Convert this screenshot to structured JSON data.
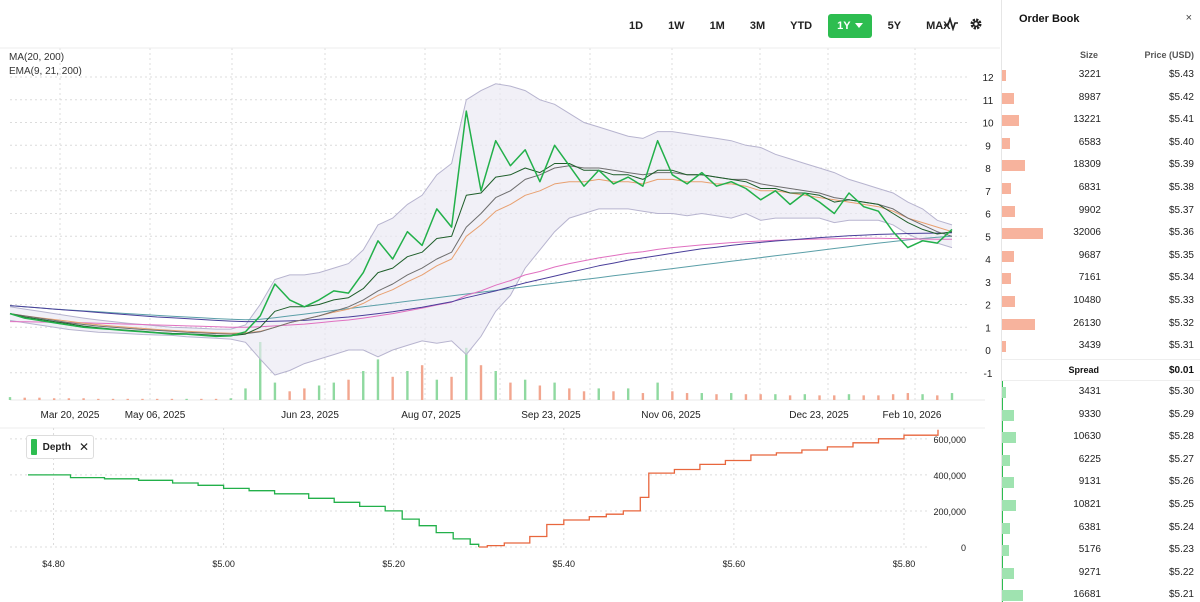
{
  "toolbar": {
    "timeframes": [
      "1D",
      "1W",
      "1M",
      "3M",
      "YTD",
      "1Y",
      "5Y",
      "MAX"
    ],
    "active_timeframe": "1Y",
    "icons": [
      "pulse-icon",
      "gear-icon"
    ]
  },
  "indicators": {
    "ma": "MA(20, 200)",
    "ema": "EMA(9, 21, 200)"
  },
  "depth_badge": {
    "label": "Depth",
    "close": "✕"
  },
  "colors": {
    "accent_green": "#2dbd50",
    "ask": "#f7b39d",
    "bid": "#9fe3b0",
    "depth_ask_line": "#e8663d",
    "price_line": "#22b04a"
  },
  "order_book": {
    "title": "Order Book",
    "close": "×",
    "size_header": "Size",
    "price_header": "Price (USD)",
    "spread_label": "Spread",
    "spread_value": "$0.01",
    "asks": [
      {
        "size": "3221",
        "price": "$5.43"
      },
      {
        "size": "8987",
        "price": "$5.42"
      },
      {
        "size": "13221",
        "price": "$5.41"
      },
      {
        "size": "6583",
        "price": "$5.40"
      },
      {
        "size": "18309",
        "price": "$5.39"
      },
      {
        "size": "6831",
        "price": "$5.38"
      },
      {
        "size": "9902",
        "price": "$5.37"
      },
      {
        "size": "32006",
        "price": "$5.36"
      },
      {
        "size": "9687",
        "price": "$5.35"
      },
      {
        "size": "7161",
        "price": "$5.34"
      },
      {
        "size": "10480",
        "price": "$5.33"
      },
      {
        "size": "26130",
        "price": "$5.32"
      },
      {
        "size": "3439",
        "price": "$5.31"
      }
    ],
    "bids": [
      {
        "size": "3431",
        "price": "$5.30"
      },
      {
        "size": "9330",
        "price": "$5.29"
      },
      {
        "size": "10630",
        "price": "$5.28"
      },
      {
        "size": "6225",
        "price": "$5.27"
      },
      {
        "size": "9131",
        "price": "$5.26"
      },
      {
        "size": "10821",
        "price": "$5.25"
      },
      {
        "size": "6381",
        "price": "$5.24"
      },
      {
        "size": "5176",
        "price": "$5.23"
      },
      {
        "size": "9271",
        "price": "$5.22"
      },
      {
        "size": "16681",
        "price": "$5.21"
      }
    ]
  },
  "chart_data": [
    {
      "type": "line",
      "x_tick_labels": [
        "Mar 20, 2025",
        "May 06, 2025",
        "Jun 23, 2025",
        "Aug 07, 2025",
        "Sep 23, 2025",
        "Nov 06, 2025",
        "Dec 23, 2025",
        "Feb 10, 2026"
      ],
      "y_tick_labels": [
        "-1",
        "0",
        "1",
        "2",
        "3",
        "4",
        "5",
        "6",
        "7",
        "8",
        "9",
        "10",
        "11",
        "12"
      ],
      "ylim": [
        -1,
        12.5
      ],
      "grid": true,
      "series": [
        {
          "key": "price",
          "color": "#22b04a",
          "values": [
            1.6,
            1.4,
            1.3,
            1.2,
            1.1,
            1.0,
            0.95,
            0.9,
            0.85,
            0.8,
            0.75,
            0.7,
            0.7,
            0.65,
            0.6,
            0.62,
            0.8,
            1.5,
            2.9,
            2.2,
            1.9,
            2.2,
            2.6,
            2.5,
            3.4,
            4.8,
            4.0,
            5.2,
            4.6,
            6.2,
            5.4,
            10.5,
            7.0,
            9.2,
            8.1,
            8.8,
            7.4,
            9.0,
            8.1,
            7.2,
            7.9,
            7.3,
            7.6,
            7.2,
            9.2,
            7.7,
            7.3,
            7.8,
            7.2,
            7.4,
            7.1,
            6.6,
            7.0,
            6.4,
            6.9,
            6.5,
            6.0,
            6.9,
            6.3,
            6.1,
            5.2,
            4.5,
            4.8,
            4.7,
            5.3
          ]
        },
        {
          "key": "ema9",
          "color": "#1e5e2a",
          "values": [
            1.6,
            1.45,
            1.35,
            1.25,
            1.15,
            1.05,
            0.98,
            0.92,
            0.87,
            0.82,
            0.77,
            0.73,
            0.71,
            0.68,
            0.64,
            0.63,
            0.7,
            1.0,
            1.7,
            1.9,
            1.9,
            2.0,
            2.2,
            2.3,
            2.7,
            3.4,
            3.6,
            4.1,
            4.3,
            4.9,
            5.0,
            6.8,
            6.9,
            7.6,
            7.7,
            8.0,
            7.8,
            8.2,
            8.2,
            7.9,
            7.9,
            7.7,
            7.7,
            7.5,
            7.9,
            7.9,
            7.7,
            7.7,
            7.6,
            7.5,
            7.4,
            7.1,
            7.1,
            6.9,
            6.9,
            6.8,
            6.5,
            6.6,
            6.5,
            6.4,
            6.0,
            5.6,
            5.3,
            5.1,
            5.2
          ]
        },
        {
          "key": "ma20",
          "color": "#6e6e6e",
          "values": [
            1.6,
            1.5,
            1.4,
            1.3,
            1.2,
            1.12,
            1.05,
            1.0,
            0.95,
            0.9,
            0.86,
            0.82,
            0.78,
            0.75,
            0.72,
            0.7,
            0.72,
            0.8,
            1.0,
            1.2,
            1.35,
            1.5,
            1.7,
            1.9,
            2.2,
            2.6,
            2.9,
            3.3,
            3.6,
            4.0,
            4.3,
            5.4,
            6.0,
            6.7,
            7.0,
            7.5,
            7.7,
            8.0,
            8.1,
            8.0,
            8.0,
            7.9,
            7.8,
            7.7,
            7.8,
            7.8,
            7.7,
            7.7,
            7.6,
            7.5,
            7.5,
            7.3,
            7.2,
            7.1,
            7.0,
            6.9,
            6.7,
            6.6,
            6.5,
            6.4,
            6.2,
            5.8,
            5.5,
            5.2,
            5.0
          ]
        },
        {
          "key": "ema21",
          "color": "#e8a070",
          "values": [
            1.6,
            1.5,
            1.42,
            1.34,
            1.26,
            1.18,
            1.11,
            1.05,
            1.0,
            0.95,
            0.9,
            0.86,
            0.82,
            0.79,
            0.76,
            0.74,
            0.75,
            0.82,
            1.0,
            1.2,
            1.35,
            1.5,
            1.66,
            1.8,
            2.05,
            2.4,
            2.65,
            3.0,
            3.3,
            3.7,
            4.0,
            5.0,
            5.5,
            6.1,
            6.4,
            6.8,
            7.0,
            7.3,
            7.4,
            7.4,
            7.5,
            7.4,
            7.4,
            7.3,
            7.5,
            7.5,
            7.4,
            7.4,
            7.3,
            7.3,
            7.2,
            7.0,
            7.0,
            6.9,
            6.8,
            6.7,
            6.6,
            6.5,
            6.4,
            6.3,
            6.1,
            5.8,
            5.6,
            5.4,
            5.2
          ]
        },
        {
          "key": "ema200",
          "color": "#e070c0",
          "values": [
            1.25,
            1.24,
            1.23,
            1.22,
            1.21,
            1.2,
            1.18,
            1.16,
            1.14,
            1.12,
            1.1,
            1.08,
            1.06,
            1.04,
            1.02,
            1.0,
            1.0,
            1.02,
            1.06,
            1.1,
            1.14,
            1.2,
            1.26,
            1.32,
            1.4,
            1.5,
            1.6,
            1.72,
            1.84,
            1.98,
            2.1,
            2.4,
            2.6,
            2.85,
            3.05,
            3.3,
            3.45,
            3.65,
            3.8,
            3.92,
            4.05,
            4.15,
            4.25,
            4.32,
            4.42,
            4.5,
            4.56,
            4.62,
            4.67,
            4.72,
            4.76,
            4.79,
            4.82,
            4.84,
            4.86,
            4.88,
            4.89,
            4.9,
            4.91,
            4.91,
            4.9,
            4.89,
            4.88,
            4.87,
            4.87
          ]
        },
        {
          "key": "ma200",
          "color": "#4a3f9a",
          "values": [
            1.95,
            1.9,
            1.85,
            1.8,
            1.75,
            1.7,
            1.65,
            1.6,
            1.55,
            1.5,
            1.45,
            1.42,
            1.38,
            1.34,
            1.3,
            1.27,
            1.25,
            1.25,
            1.26,
            1.28,
            1.3,
            1.35,
            1.4,
            1.45,
            1.52,
            1.6,
            1.68,
            1.78,
            1.88,
            2.0,
            2.12,
            2.3,
            2.45,
            2.6,
            2.78,
            2.95,
            3.1,
            3.25,
            3.4,
            3.55,
            3.7,
            3.82,
            3.95,
            4.05,
            4.15,
            4.25,
            4.35,
            4.45,
            4.52,
            4.6,
            4.67,
            4.73,
            4.79,
            4.84,
            4.89,
            4.94,
            4.98,
            5.02,
            5.05,
            5.08,
            5.1,
            5.12,
            5.13,
            5.14,
            5.15
          ]
        },
        {
          "key": "trend",
          "color": "#5b9fa8",
          "values": [
            1.95,
            1.9,
            1.85,
            1.8,
            1.76,
            1.72,
            1.68,
            1.64,
            1.6,
            1.56,
            1.52,
            1.48,
            1.45,
            1.42,
            1.38,
            1.35,
            1.33,
            1.35,
            1.42,
            1.5,
            1.58,
            1.66,
            1.74,
            1.82,
            1.9,
            1.98,
            2.06,
            2.14,
            2.22,
            2.3,
            2.38,
            2.46,
            2.54,
            2.62,
            2.7,
            2.78,
            2.86,
            2.94,
            3.02,
            3.1,
            3.18,
            3.26,
            3.34,
            3.42,
            3.5,
            3.58,
            3.66,
            3.74,
            3.82,
            3.9,
            3.98,
            4.06,
            4.14,
            4.22,
            4.3,
            4.38,
            4.46,
            4.54,
            4.62,
            4.7,
            4.77,
            4.84,
            4.9,
            4.96,
            5.0
          ]
        }
      ],
      "bollinger": {
        "upper": [
          1.9,
          1.8,
          1.7,
          1.6,
          1.5,
          1.4,
          1.32,
          1.25,
          1.18,
          1.12,
          1.06,
          1.0,
          0.98,
          0.95,
          0.92,
          0.92,
          1.1,
          2.0,
          3.1,
          3.3,
          3.3,
          3.4,
          3.6,
          3.8,
          4.4,
          5.5,
          5.8,
          6.4,
          6.8,
          7.7,
          8.2,
          11.0,
          11.4,
          11.7,
          11.6,
          11.4,
          11.0,
          10.8,
          10.4,
          10.0,
          9.8,
          9.6,
          9.4,
          9.3,
          9.6,
          9.6,
          9.5,
          9.4,
          9.3,
          9.2,
          9.0,
          8.9,
          8.6,
          8.4,
          8.2,
          8.0,
          7.8,
          7.5,
          7.3,
          7.1,
          6.9,
          6.5,
          6.2,
          5.7,
          5.5
        ],
        "lower": [
          1.3,
          1.2,
          1.1,
          1.0,
          0.9,
          0.84,
          0.78,
          0.75,
          0.72,
          0.68,
          0.66,
          0.64,
          0.58,
          0.55,
          0.52,
          0.48,
          0.34,
          -0.4,
          -1.1,
          -0.9,
          -0.6,
          -0.4,
          -0.2,
          0.0,
          0.0,
          -0.3,
          0.0,
          0.2,
          0.4,
          0.3,
          0.4,
          -0.2,
          0.6,
          1.7,
          2.4,
          3.6,
          4.4,
          5.2,
          5.8,
          6.0,
          6.2,
          6.2,
          6.2,
          6.1,
          6.0,
          6.0,
          5.9,
          6.0,
          5.9,
          5.8,
          6.0,
          5.7,
          5.8,
          5.8,
          5.8,
          5.8,
          5.6,
          5.7,
          5.7,
          5.7,
          5.5,
          5.1,
          4.8,
          4.7,
          4.5
        ]
      },
      "volume": [
        0.05,
        0.04,
        0.04,
        0.03,
        0.03,
        0.03,
        0.02,
        0.02,
        0.02,
        0.02,
        0.02,
        0.02,
        0.02,
        0.02,
        0.02,
        0.03,
        0.2,
        1.0,
        0.3,
        0.15,
        0.2,
        0.25,
        0.3,
        0.35,
        0.5,
        0.7,
        0.4,
        0.5,
        0.6,
        0.35,
        0.4,
        0.9,
        0.6,
        0.5,
        0.3,
        0.35,
        0.25,
        0.3,
        0.2,
        0.15,
        0.2,
        0.15,
        0.2,
        0.12,
        0.3,
        0.15,
        0.12,
        0.12,
        0.1,
        0.12,
        0.1,
        0.1,
        0.1,
        0.08,
        0.1,
        0.08,
        0.08,
        0.1,
        0.08,
        0.08,
        0.1,
        0.12,
        0.1,
        0.08,
        0.12
      ]
    },
    {
      "type": "area",
      "x_tick_labels": [
        "$4.80",
        "$5.00",
        "$5.20",
        "$5.40",
        "$5.60",
        "$5.80"
      ],
      "y_tick_labels": [
        "0",
        "200,000",
        "400,000",
        "600,000"
      ],
      "xlim": [
        4.77,
        5.84
      ],
      "ylim": [
        0,
        660000
      ],
      "bids": [
        [
          4.77,
          400000
        ],
        [
          4.8,
          400000
        ],
        [
          4.82,
          385000
        ],
        [
          4.86,
          378000
        ],
        [
          4.9,
          370000
        ],
        [
          4.94,
          355000
        ],
        [
          4.97,
          342000
        ],
        [
          5.0,
          325000
        ],
        [
          5.03,
          312000
        ],
        [
          5.06,
          295000
        ],
        [
          5.1,
          270000
        ],
        [
          5.13,
          248000
        ],
        [
          5.16,
          225000
        ],
        [
          5.19,
          200000
        ],
        [
          5.21,
          155000
        ],
        [
          5.23,
          118000
        ],
        [
          5.25,
          80000
        ],
        [
          5.27,
          45000
        ],
        [
          5.29,
          15000
        ],
        [
          5.3,
          0
        ]
      ],
      "asks": [
        [
          5.3,
          0
        ],
        [
          5.31,
          8000
        ],
        [
          5.33,
          22000
        ],
        [
          5.36,
          58000
        ],
        [
          5.38,
          125000
        ],
        [
          5.4,
          150000
        ],
        [
          5.43,
          168000
        ],
        [
          5.45,
          182000
        ],
        [
          5.47,
          200000
        ],
        [
          5.49,
          275000
        ],
        [
          5.5,
          410000
        ],
        [
          5.53,
          430000
        ],
        [
          5.56,
          458000
        ],
        [
          5.59,
          480000
        ],
        [
          5.62,
          510000
        ],
        [
          5.65,
          522000
        ],
        [
          5.68,
          538000
        ],
        [
          5.71,
          555000
        ],
        [
          5.74,
          578000
        ],
        [
          5.77,
          600000
        ],
        [
          5.8,
          620000
        ],
        [
          5.84,
          650000
        ]
      ]
    }
  ]
}
